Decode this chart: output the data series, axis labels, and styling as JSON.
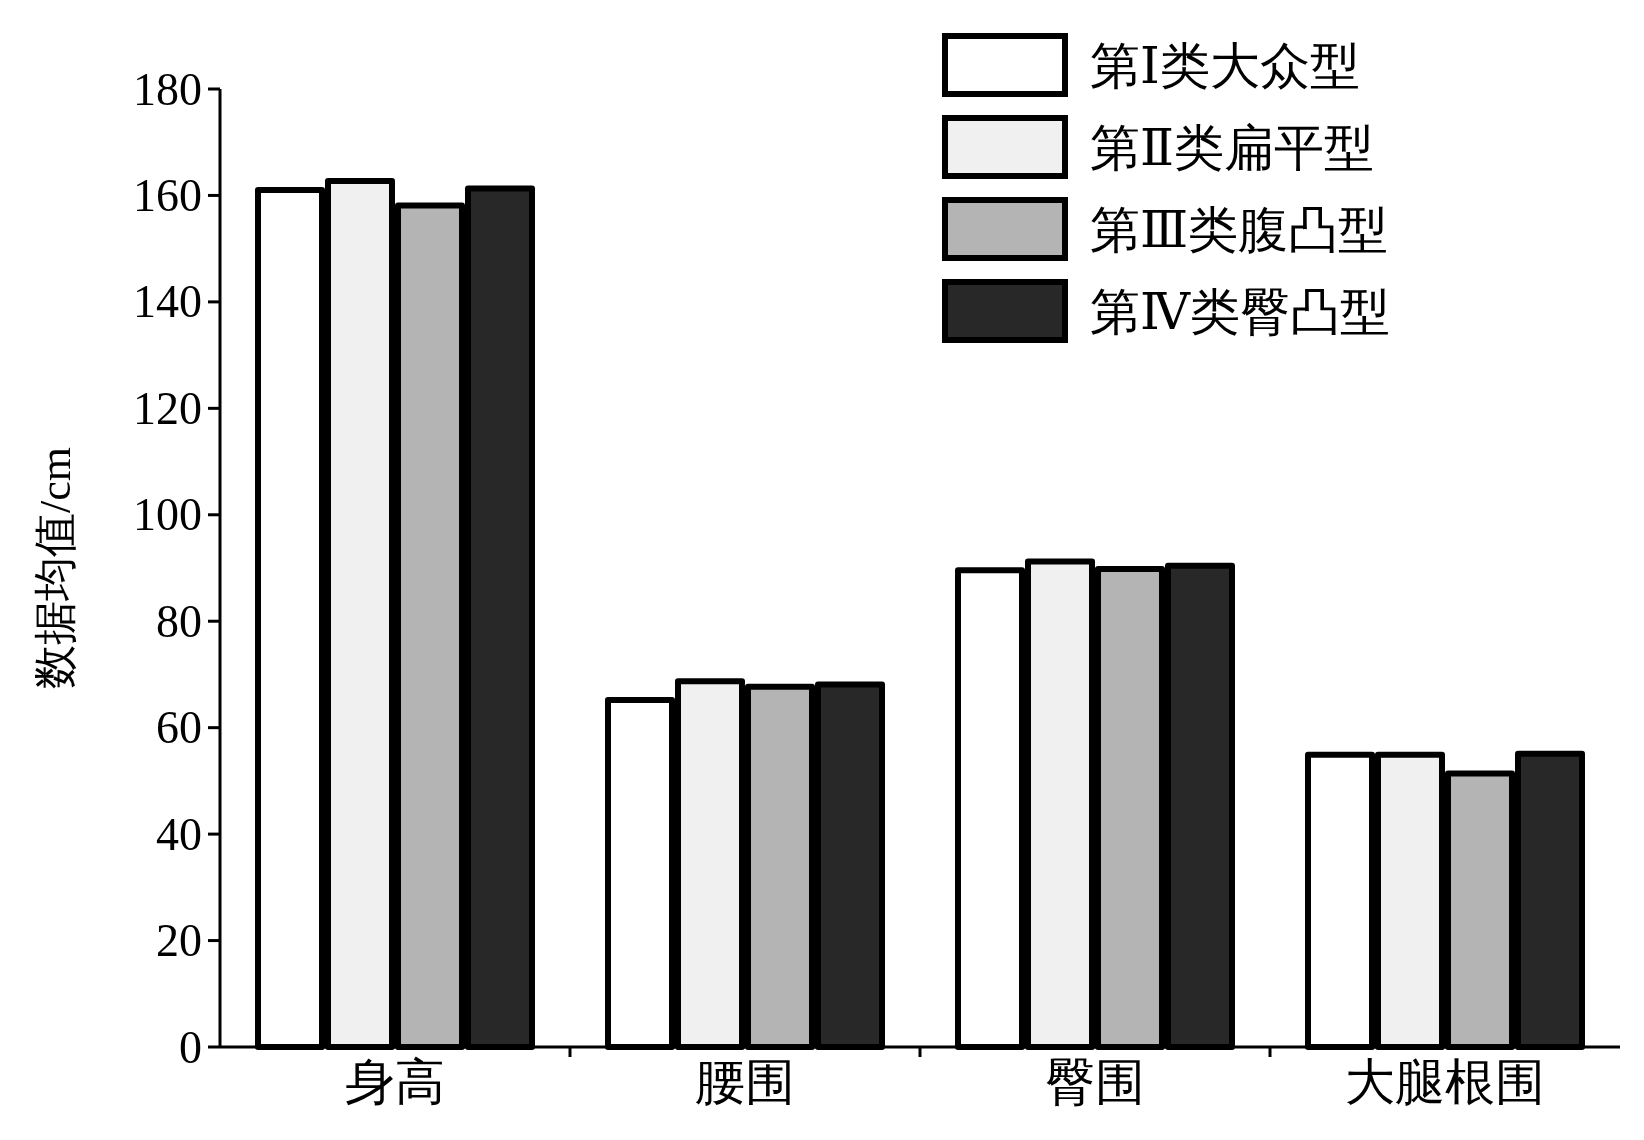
{
  "chart_data": {
    "type": "bar",
    "ylabel": "数据均值/cm",
    "categories": [
      "身高",
      "腰围",
      "臀围",
      "大腿根围"
    ],
    "series": [
      {
        "name": "第Ⅰ类大众型",
        "color": "#ffffff",
        "values": [
          161,
          65.2,
          89.6,
          54.9
        ]
      },
      {
        "name": "第Ⅱ类扁平型",
        "color": "#f0f0f0",
        "values": [
          162.7,
          68.7,
          91.2,
          54.9
        ]
      },
      {
        "name": "第Ⅲ类腹凸型",
        "color": "#b4b4b4",
        "values": [
          158.1,
          67.7,
          89.8,
          51.4
        ]
      },
      {
        "name": "第Ⅳ类臀凸型",
        "color": "#282828",
        "values": [
          161.3,
          68.1,
          90.4,
          55.1
        ]
      }
    ],
    "ylim": [
      0,
      180
    ],
    "yticks": [
      0,
      20,
      40,
      60,
      80,
      100,
      120,
      140,
      160,
      180
    ],
    "grid": false,
    "legend": "top right"
  }
}
